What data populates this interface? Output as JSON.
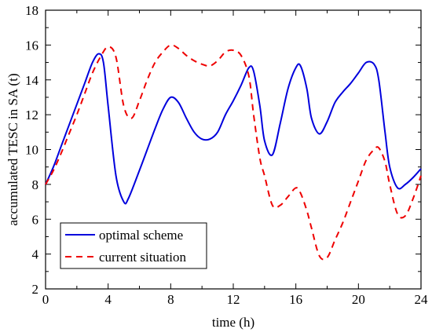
{
  "chart_data": {
    "type": "line",
    "title": "",
    "xlabel": "time (h)",
    "ylabel": "accumulated TESC in SA (t)",
    "xlim": [
      0,
      24
    ],
    "ylim": [
      2,
      18
    ],
    "xticks": [
      0,
      4,
      8,
      12,
      16,
      20,
      24
    ],
    "yticks": [
      2,
      4,
      6,
      8,
      10,
      12,
      14,
      16,
      18
    ],
    "grid": false,
    "legend_position": "bottom-left",
    "series": [
      {
        "name": "optimal scheme",
        "color": "#0000dd",
        "dash": "solid",
        "x": [
          0,
          0.5,
          1,
          1.5,
          2,
          2.5,
          3,
          3.4,
          3.7,
          4,
          4.5,
          5,
          5.3,
          6,
          6.5,
          7,
          7.5,
          8,
          8.5,
          9,
          9.5,
          10,
          10.5,
          11,
          11.5,
          12,
          12.5,
          13,
          13.3,
          13.7,
          14,
          14.5,
          15,
          15.5,
          16,
          16.3,
          16.7,
          17,
          17.5,
          18,
          18.5,
          19,
          19.5,
          20,
          20.5,
          21,
          21.3,
          21.7,
          22,
          22.5,
          23,
          23.5,
          24
        ],
        "y": [
          8.0,
          9.0,
          10.2,
          11.4,
          12.6,
          13.8,
          15.0,
          15.5,
          15.0,
          12.5,
          8.5,
          7.0,
          7.2,
          8.8,
          10.0,
          11.2,
          12.3,
          13.0,
          12.7,
          11.8,
          11.0,
          10.6,
          10.6,
          11.0,
          12.0,
          12.8,
          13.7,
          14.7,
          14.5,
          12.5,
          10.5,
          9.7,
          11.5,
          13.5,
          14.7,
          14.8,
          13.5,
          11.8,
          10.9,
          11.6,
          12.7,
          13.3,
          13.8,
          14.4,
          15.0,
          14.9,
          14.0,
          11.0,
          9.0,
          7.8,
          8.0,
          8.4,
          8.9
        ]
      },
      {
        "name": "current situation",
        "color": "#ee0000",
        "dash": "dashed",
        "x": [
          0,
          0.5,
          1,
          1.5,
          2,
          2.5,
          3,
          3.5,
          4,
          4.5,
          5,
          5.5,
          6,
          6.5,
          7,
          7.5,
          8,
          8.5,
          9,
          9.5,
          10,
          10.5,
          11,
          11.5,
          12,
          12.5,
          13,
          13.3,
          13.7,
          14,
          14.5,
          15,
          15.5,
          16,
          16.3,
          16.7,
          17,
          17.5,
          18,
          18.5,
          19,
          19.5,
          20,
          20.5,
          21,
          21.3,
          21.7,
          22,
          22.5,
          23,
          23.5,
          24
        ],
        "y": [
          8.0,
          8.8,
          9.8,
          10.9,
          12.0,
          13.2,
          14.4,
          15.3,
          15.9,
          15.3,
          12.5,
          11.8,
          12.8,
          14.0,
          15.0,
          15.6,
          16.0,
          15.8,
          15.4,
          15.1,
          14.9,
          14.8,
          15.1,
          15.6,
          15.7,
          15.4,
          14.2,
          12.0,
          9.5,
          8.5,
          6.8,
          6.8,
          7.3,
          7.8,
          7.5,
          6.5,
          5.5,
          3.9,
          3.8,
          4.8,
          5.8,
          7.0,
          8.2,
          9.4,
          10.0,
          10.1,
          9.3,
          8.0,
          6.3,
          6.2,
          7.2,
          8.5
        ]
      }
    ]
  }
}
